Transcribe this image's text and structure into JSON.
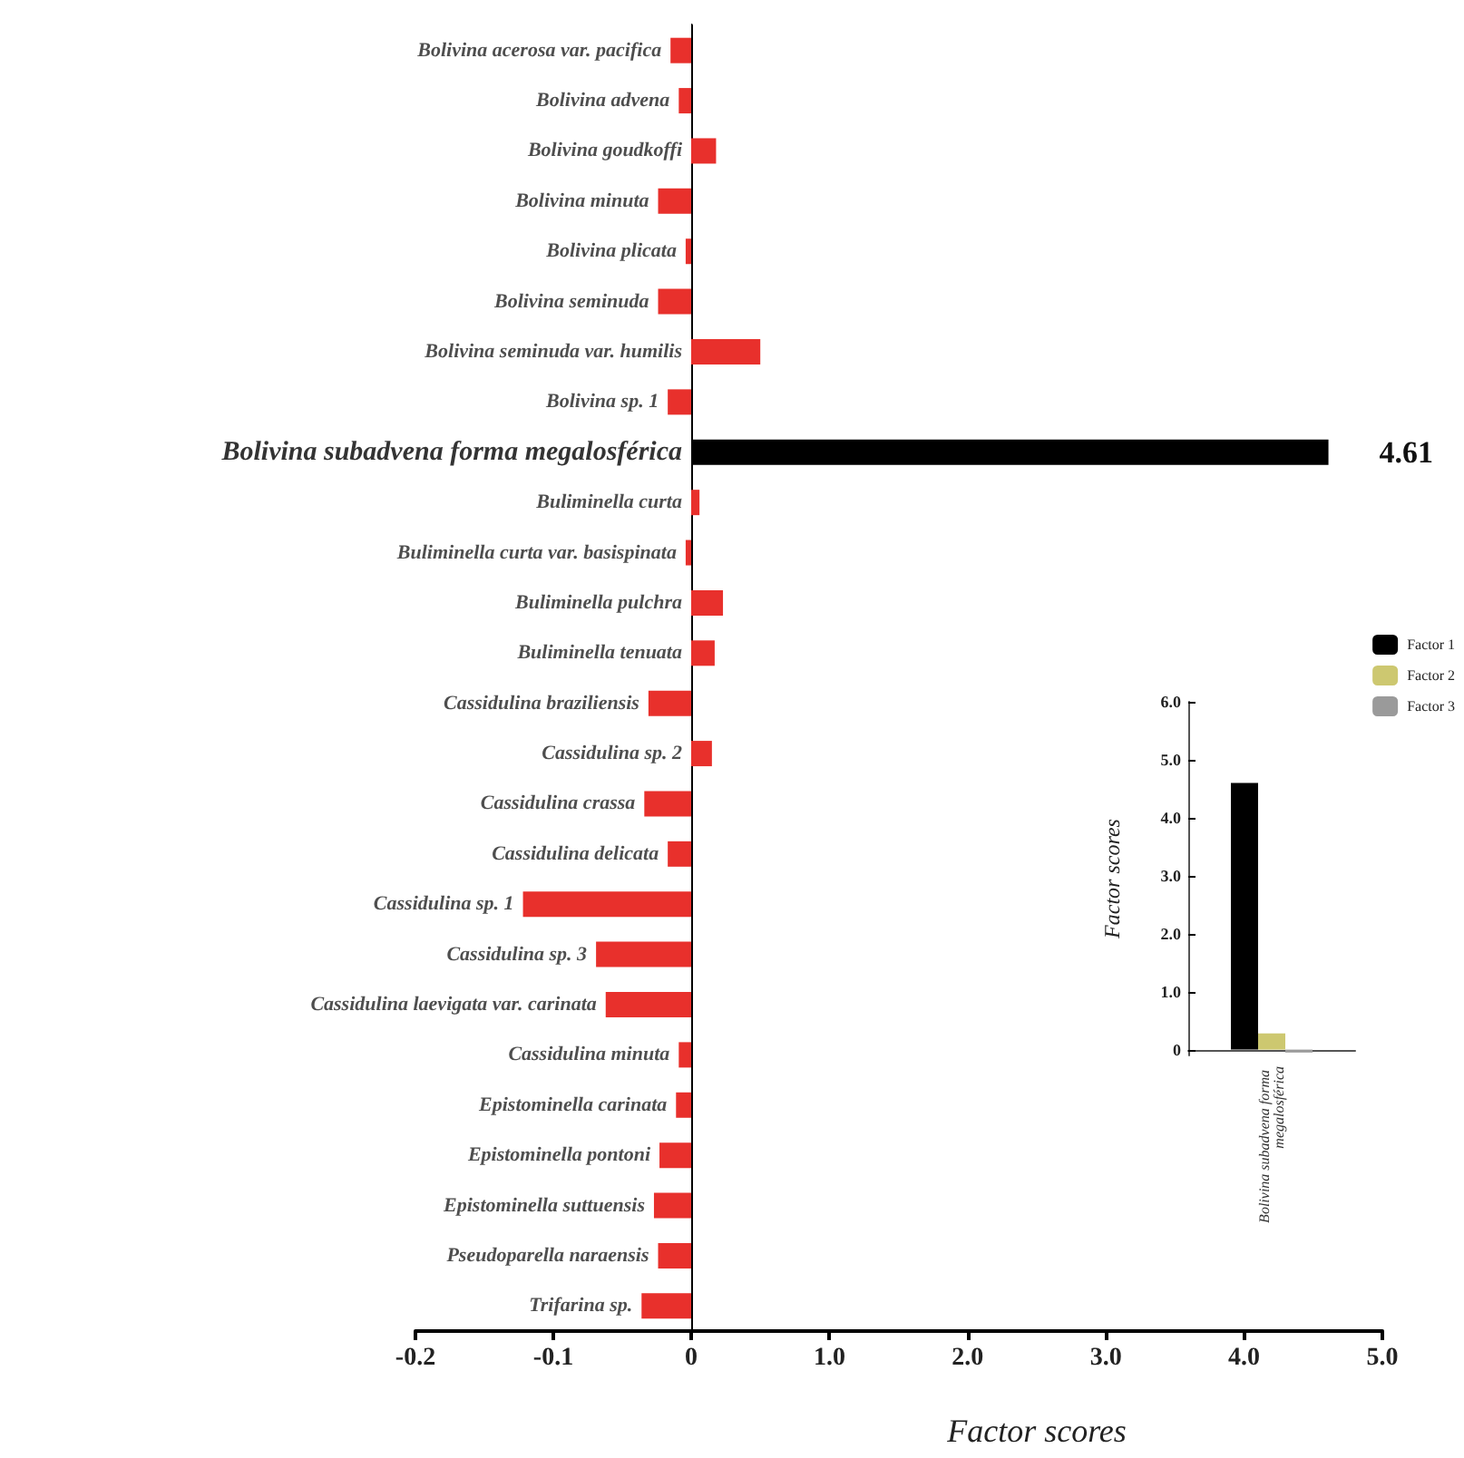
{
  "chart_data": [
    {
      "type": "bar",
      "orientation": "horizontal",
      "categories": [
        "Bolivina acerosa var. pacifica",
        "Bolivina advena",
        "Bolivina goudkoffi",
        "Bolivina minuta",
        "Bolivina plicata",
        "Bolivina seminuda",
        "Bolivina seminuda var. humilis",
        "Bolivina sp. 1",
        "Bolivina subadvena forma megalosférica",
        "Buliminella curta",
        "Buliminella curta var. basispinata",
        "Buliminella pulchra",
        "Buliminella tenuata",
        "Cassidulina braziliensis",
        "Cassidulina sp. 2",
        "Cassidulina crassa",
        "Cassidulina delicata",
        "Cassidulina sp. 1",
        "Cassidulina sp. 3",
        "Cassidulina laevigata var. carinata",
        "Cassidulina minuta",
        "Epistominella carinata",
        "Epistominella pontoni",
        "Epistominella suttuensis",
        "Pseudoparella naraensis",
        "Trifarina sp."
      ],
      "values": [
        -0.015,
        -0.009,
        null,
        -0.024,
        -0.004,
        -0.024,
        null,
        -0.017,
        null,
        null,
        -0.004,
        null,
        null,
        -0.031,
        null,
        -0.034,
        -0.017,
        -0.122,
        -0.069,
        -0.062,
        -0.009,
        -0.011,
        -0.023,
        -0.027,
        -0.024,
        -0.036
      ],
      "color": "#e8302c",
      "xlim": [
        -0.2,
        0
      ],
      "xticks": [
        -0.2,
        -0.1,
        0
      ]
    },
    {
      "type": "bar",
      "orientation": "horizontal",
      "categories": [
        "Bolivina acerosa var. pacifica",
        "Bolivina advena",
        "Bolivina goudkoffi",
        "Bolivina minuta",
        "Bolivina plicata",
        "Bolivina seminuda",
        "Bolivina seminuda var. humilis",
        "Bolivina sp. 1",
        "Bolivina subadvena forma megalosférica",
        "Buliminella curta",
        "Buliminella curta var. basispinata",
        "Buliminella pulchra",
        "Buliminella tenuata",
        "Cassidulina braziliensis",
        "Cassidulina sp. 2",
        "Cassidulina crassa",
        "Cassidulina delicata",
        "Cassidulina sp. 1",
        "Cassidulina sp. 3",
        "Cassidulina laevigata var. carinata",
        "Cassidulina minuta",
        "Epistominella carinata",
        "Epistominella pontoni",
        "Epistominella suttuensis",
        "Pseudoparella naraensis",
        "Trifarina sp."
      ],
      "values": [
        null,
        null,
        0.18,
        null,
        null,
        null,
        0.5,
        null,
        4.61,
        0.06,
        null,
        0.23,
        0.17,
        null,
        0.15,
        null,
        null,
        null,
        null,
        null,
        null,
        null,
        null,
        null,
        null,
        null
      ],
      "colors": [
        "#e8302c",
        "#e8302c",
        "#e8302c",
        "#e8302c",
        "#e8302c",
        "#e8302c",
        "#e8302c",
        "#e8302c",
        "#000000",
        "#e8302c",
        "#e8302c",
        "#e8302c",
        "#e8302c",
        "#e8302c",
        "#e8302c",
        "#e8302c",
        "#e8302c",
        "#e8302c",
        "#e8302c",
        "#e8302c",
        "#e8302c",
        "#e8302c",
        "#e8302c",
        "#e8302c",
        "#e8302c",
        "#e8302c"
      ],
      "value_labels": [
        null,
        null,
        null,
        null,
        null,
        null,
        null,
        null,
        "4.61",
        null,
        null,
        null,
        null,
        null,
        null,
        null,
        null,
        null,
        null,
        null,
        null,
        null,
        null,
        null,
        null,
        null
      ],
      "xlim": [
        0,
        5
      ],
      "xticks": [
        {
          "value": 1,
          "label": "1.0"
        },
        {
          "value": 2,
          "label": "2.0"
        },
        {
          "value": 3,
          "label": "3.0"
        },
        {
          "value": 4,
          "label": "4.0"
        },
        {
          "value": 5,
          "label": "5.0"
        }
      ],
      "xlabel": "Factor scores",
      "tick_labels": "x"
    },
    {
      "type": "bar",
      "categories": [
        "Bolivina subadvena forma megalosférica"
      ],
      "ylabel": "Factor scores",
      "series": [
        {
          "name": "Factor 1",
          "color": "#000000",
          "values": [
            4.6
          ]
        },
        {
          "name": "Factor 2",
          "color": "#cdc870",
          "values": [
            0.28
          ]
        },
        {
          "name": "Factor 3",
          "color": "#9a9a9a",
          "values": [
            -0.05
          ]
        }
      ],
      "ylim": [
        -0.1,
        6
      ],
      "yticks": [
        0,
        {
          "value": 1,
          "label": "1.0"
        },
        {
          "value": 2,
          "label": "2.0"
        },
        {
          "value": 3,
          "label": "3.0"
        },
        {
          "value": 4,
          "label": "4.0"
        },
        {
          "value": 5,
          "label": "5.0"
        },
        {
          "value": 6,
          "label": "6.0"
        }
      ],
      "legend": "top right"
    }
  ]
}
